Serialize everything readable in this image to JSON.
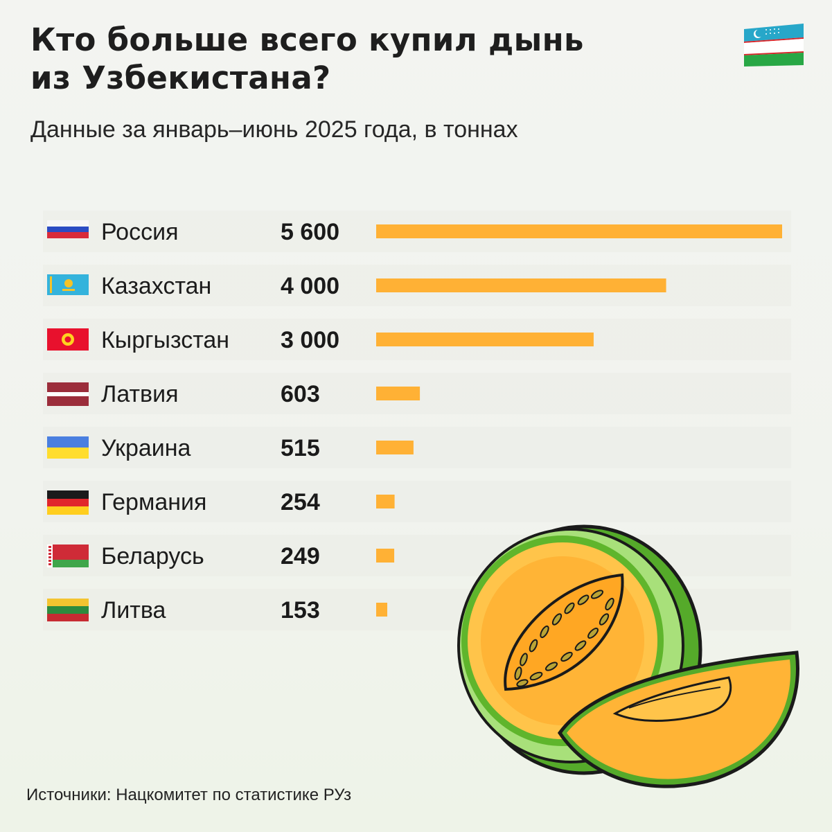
{
  "header": {
    "title_line1": "Кто больше всего купил дынь",
    "title_line2": "из Узбекистана?",
    "subtitle": "Данные за январь–июнь 2025 года, в тоннах"
  },
  "footer": {
    "source": "Источники: Нацкомитет по статистике РУз"
  },
  "colors": {
    "bar": "#ffb135",
    "row_band": "#e9ebe5",
    "text": "#1c1c1c"
  },
  "chart_data": {
    "type": "bar",
    "orientation": "horizontal",
    "categories": [
      "Россия",
      "Казахстан",
      "Кыргызстан",
      "Латвия",
      "Украина",
      "Германия",
      "Беларусь",
      "Литва"
    ],
    "values": [
      5600,
      4000,
      3000,
      603,
      515,
      254,
      249,
      153
    ],
    "value_labels": [
      "5 600",
      "4 000",
      "3 000",
      "603",
      "515",
      "254",
      "249",
      "153"
    ],
    "flags": [
      "russia-flag",
      "kazakhstan-flag",
      "kyrgyzstan-flag",
      "latvia-flag",
      "ukraine-flag",
      "germany-flag",
      "belarus-flag",
      "lithuania-flag"
    ],
    "xlim": [
      0,
      5600
    ],
    "grid": false
  }
}
